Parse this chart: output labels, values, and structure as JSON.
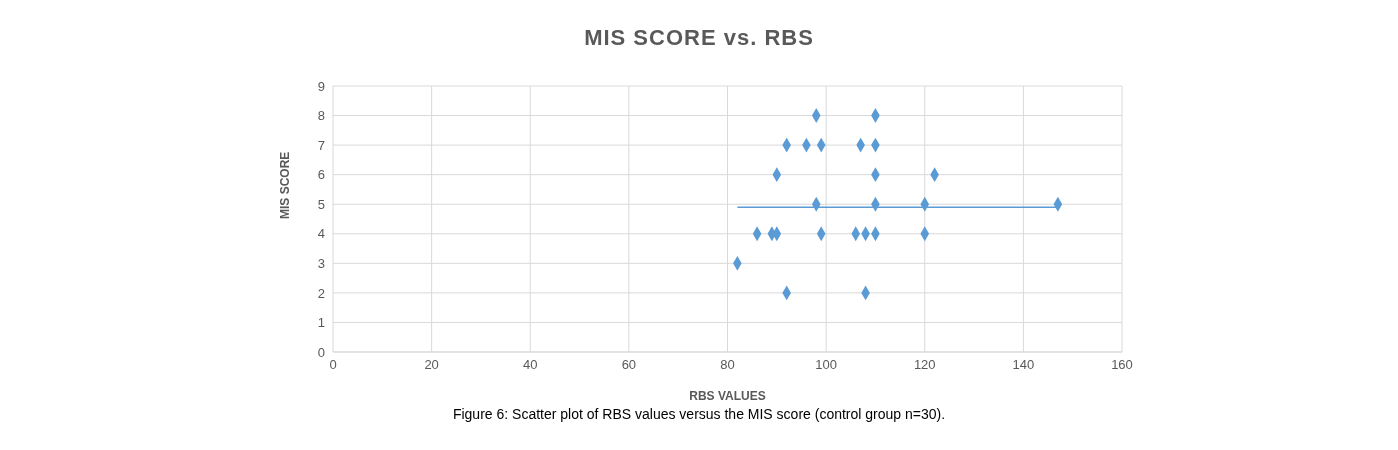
{
  "chart_data": {
    "type": "scatter",
    "title": "MIS SCORE vs. RBS",
    "xlabel": "RBS VALUES",
    "ylabel": "MIS SCORE",
    "annotations": [
      "Figure 6: Scatter plot of RBS values versus the MIS score (control group n=30)."
    ],
    "x": [
      98,
      110,
      92,
      96,
      99,
      107,
      110,
      90,
      110,
      122,
      98,
      110,
      120,
      147,
      86,
      89,
      90,
      99,
      106,
      108,
      110,
      120,
      82,
      92,
      108
    ],
    "series": [
      {
        "color": "#5b9bd5",
        "marker": "diamond",
        "values": [
          8,
          8,
          7,
          7,
          7,
          7,
          7,
          6,
          6,
          6,
          5,
          5,
          5,
          5,
          4,
          4,
          4,
          4,
          4,
          4,
          4,
          4,
          3,
          2,
          2
        ]
      },
      {
        "type": "line",
        "color": "#5b9bd5",
        "marker": "none",
        "x": [
          82,
          147
        ],
        "values": [
          4.9,
          4.9
        ]
      }
    ],
    "xlim": [
      0,
      160
    ],
    "xticks": [
      0,
      20,
      40,
      60,
      80,
      100,
      120,
      140,
      160
    ],
    "ylim": [
      0,
      9
    ],
    "yticks": [
      0,
      1,
      2,
      3,
      4,
      5,
      6,
      7,
      8,
      9
    ],
    "grid": true,
    "legend": false
  }
}
